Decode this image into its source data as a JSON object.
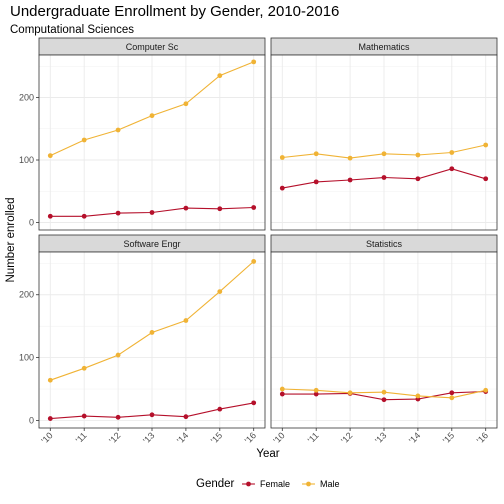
{
  "chart_data": {
    "type": "line",
    "title": "Undergraduate Enrollment by Gender, 2010-2016",
    "subtitle": "Computational Sciences",
    "xlabel": "Year",
    "ylabel": "Number enrolled",
    "x": [
      "'10",
      "'11",
      "'12",
      "'13",
      "'14",
      "'15",
      "'16"
    ],
    "ylim": [
      -12,
      268
    ],
    "yticks": [
      0,
      100,
      200
    ],
    "grid": true,
    "legend": {
      "title": "Gender",
      "position": "bottom",
      "entries": [
        {
          "name": "Female",
          "color": "#b5102b"
        },
        {
          "name": "Male",
          "color": "#f0b335"
        }
      ]
    },
    "panels": [
      {
        "name": "Computer Sc",
        "series": [
          {
            "name": "Female",
            "values": [
              10,
              10,
              15,
              16,
              23,
              22,
              24
            ]
          },
          {
            "name": "Male",
            "values": [
              107,
              132,
              148,
              171,
              190,
              235,
              257
            ]
          }
        ]
      },
      {
        "name": "Mathematics",
        "series": [
          {
            "name": "Female",
            "values": [
              55,
              65,
              68,
              72,
              70,
              86,
              70
            ]
          },
          {
            "name": "Male",
            "values": [
              104,
              110,
              103,
              110,
              108,
              112,
              124
            ]
          }
        ]
      },
      {
        "name": "Software Engr",
        "series": [
          {
            "name": "Female",
            "values": [
              3,
              7,
              5,
              9,
              6,
              18,
              28
            ]
          },
          {
            "name": "Male",
            "values": [
              64,
              83,
              104,
              140,
              159,
              205,
              253
            ]
          }
        ]
      },
      {
        "name": "Statistics",
        "series": [
          {
            "name": "Female",
            "values": [
              42,
              42,
              43,
              33,
              34,
              44,
              46
            ]
          },
          {
            "name": "Male",
            "values": [
              50,
              48,
              44,
              45,
              39,
              36,
              48
            ]
          }
        ]
      }
    ]
  }
}
